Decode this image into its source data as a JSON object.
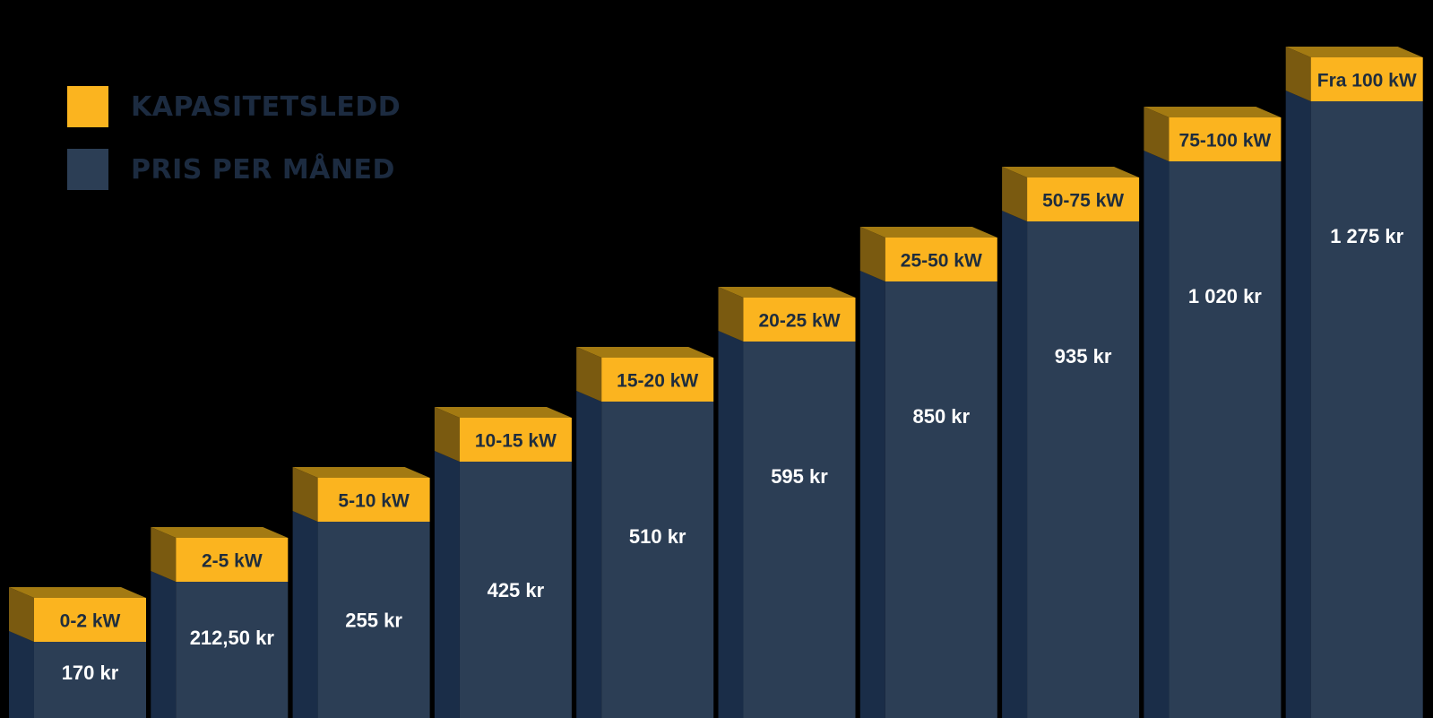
{
  "chart_data": {
    "type": "bar",
    "title": "",
    "xlabel": "",
    "ylabel": "",
    "legend_position": "top-left",
    "legend": [
      {
        "label": "KAPASITETSLEDD",
        "color": "#fbb41f"
      },
      {
        "label": "PRIS PER MÅNED",
        "color": "#2c3e55"
      }
    ],
    "categories": [
      "0-2 kW",
      "2-5 kW",
      "5-10 kW",
      "10-15 kW",
      "15-20 kW",
      "20-25 kW",
      "25-50 kW",
      "50-75 kW",
      "75-100 kW",
      "Fra 100 kW"
    ],
    "values": [
      170,
      212.5,
      255,
      425,
      510,
      595,
      850,
      935,
      1020,
      1275
    ],
    "value_labels": [
      "170 kr",
      "212,50 kr",
      "255 kr",
      "425 kr",
      "510 kr",
      "595 kr",
      "850 kr",
      "935 kr",
      "1 020 kr",
      "1 275 kr"
    ],
    "bar_step_rank": [
      1,
      2,
      3,
      4,
      5,
      6,
      7,
      8,
      9,
      10
    ],
    "grid": false
  },
  "colors": {
    "background": "#000000",
    "cap_front": "#fbb41f",
    "cap_top": "#a37a12",
    "cap_side": "#7a5a10",
    "body_front": "#2c3e55",
    "body_side": "#1a2d48",
    "legend_text": "#1c2b40"
  }
}
